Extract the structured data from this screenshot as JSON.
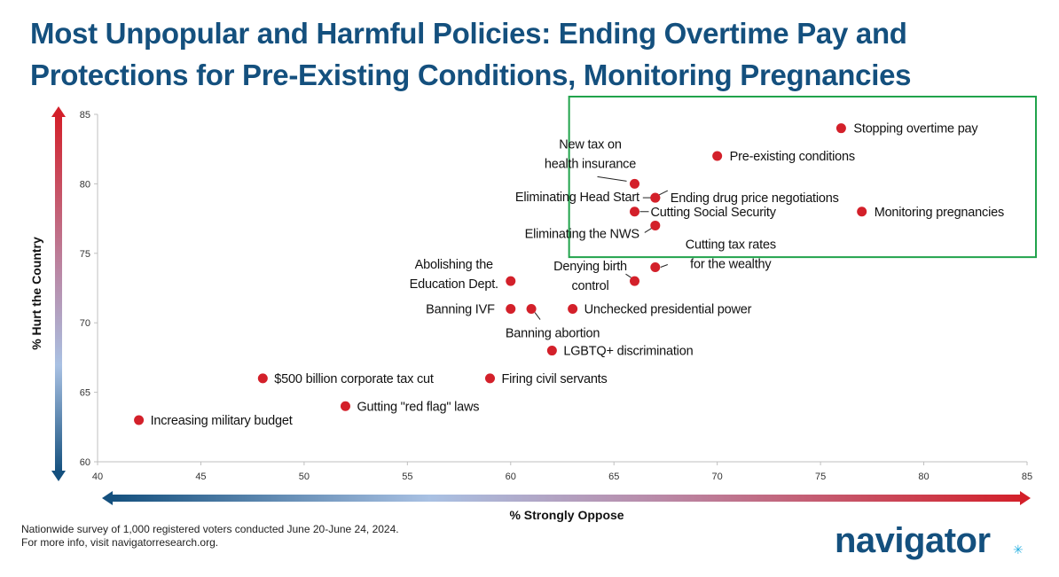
{
  "title": "Most Unpopular and Harmful Policies: Ending Overtime Pay and Protections for Pre-Existing Conditions, Monitoring Pregnancies",
  "footnote": {
    "line1": "Nationwide survey of 1,000 registered voters conducted June 20-June 24, 2024.",
    "line2": "For more info, visit navigatorresearch.org."
  },
  "logo": {
    "text": "navigator",
    "mark": "✳"
  },
  "colors": {
    "title": "#14507e",
    "point": "#d3202a",
    "highlight_box": "#21a34c",
    "arrow_low": "#14507e",
    "arrow_mid": "#a9c1e3",
    "arrow_high": "#d3202a"
  },
  "chart_data": {
    "type": "scatter",
    "xlabel": "% Strongly Oppose",
    "ylabel": "% Hurt the Country",
    "xlim": [
      40,
      85
    ],
    "ylim": [
      60,
      85
    ],
    "xticks": [
      40,
      45,
      50,
      55,
      60,
      65,
      70,
      75,
      80,
      85
    ],
    "yticks": [
      60,
      65,
      70,
      75,
      80,
      85
    ],
    "grid": false,
    "highlight_region": {
      "x": [
        63,
        85
      ],
      "y": [
        76,
        85
      ]
    },
    "points": [
      {
        "label": "Stopping overtime pay",
        "x": 76,
        "y": 84
      },
      {
        "label": "Pre-existing conditions",
        "x": 70,
        "y": 82
      },
      {
        "label": "New tax on health insurance",
        "x": 66,
        "y": 80
      },
      {
        "label": "Ending drug price negotiations",
        "x": 67,
        "y": 79
      },
      {
        "label": "Eliminating Head Start",
        "x": 67,
        "y": 79
      },
      {
        "label": "Cutting Social Security",
        "x": 66,
        "y": 78
      },
      {
        "label": "Monitoring pregnancies",
        "x": 77,
        "y": 78
      },
      {
        "label": "Eliminating the NWS",
        "x": 67,
        "y": 77
      },
      {
        "label": "Cutting tax rates for the wealthy",
        "x": 67,
        "y": 74
      },
      {
        "label": "Abolishing the Education Dept.",
        "x": 60,
        "y": 73
      },
      {
        "label": "Denying birth control",
        "x": 66,
        "y": 73
      },
      {
        "label": "Banning IVF",
        "x": 60,
        "y": 71
      },
      {
        "label": "Banning abortion",
        "x": 61,
        "y": 71
      },
      {
        "label": "Unchecked presidential power",
        "x": 63,
        "y": 71
      },
      {
        "label": "LGBTQ+ discrimination",
        "x": 62,
        "y": 68
      },
      {
        "label": "$500 billion corporate tax cut",
        "x": 48,
        "y": 66
      },
      {
        "label": "Firing civil servants",
        "x": 59,
        "y": 66
      },
      {
        "label": "Gutting \"red flag\" laws",
        "x": 52,
        "y": 64
      },
      {
        "label": "Increasing military budget",
        "x": 42,
        "y": 63
      }
    ]
  }
}
